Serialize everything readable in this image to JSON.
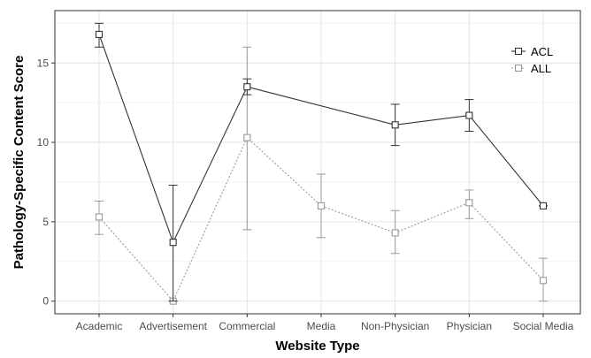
{
  "chart_data": {
    "type": "line",
    "xlabel": "Website Type",
    "ylabel": "Pathology-Specific Content Score",
    "categories": [
      "Academic",
      "Advertisement",
      "Commercial",
      "Media",
      "Non-Physician",
      "Physician",
      "Social Media"
    ],
    "ylim": [
      -0.8,
      18.3
    ],
    "yticks": [
      0,
      5,
      10,
      15
    ],
    "grid": true,
    "legend": "top-right",
    "series": [
      {
        "name": "ACL",
        "color": "#333333",
        "line_style": "solid",
        "marker": "open-square",
        "values": [
          16.8,
          3.7,
          13.5,
          null,
          11.1,
          11.7,
          6.0
        ],
        "error_low": [
          16.0,
          0.0,
          13.0,
          null,
          9.8,
          10.7,
          6.0
        ],
        "error_high": [
          17.5,
          7.3,
          14.0,
          null,
          12.4,
          12.7,
          6.0
        ]
      },
      {
        "name": "ALL",
        "color": "#9a9a9a",
        "line_style": "dotted",
        "marker": "open-square",
        "values": [
          5.3,
          0.0,
          10.3,
          6.0,
          4.3,
          6.2,
          1.3
        ],
        "error_low": [
          4.2,
          0.0,
          4.5,
          4.0,
          3.0,
          5.2,
          0.0
        ],
        "error_high": [
          6.3,
          0.0,
          16.0,
          8.0,
          5.7,
          7.0,
          2.7
        ]
      }
    ]
  }
}
